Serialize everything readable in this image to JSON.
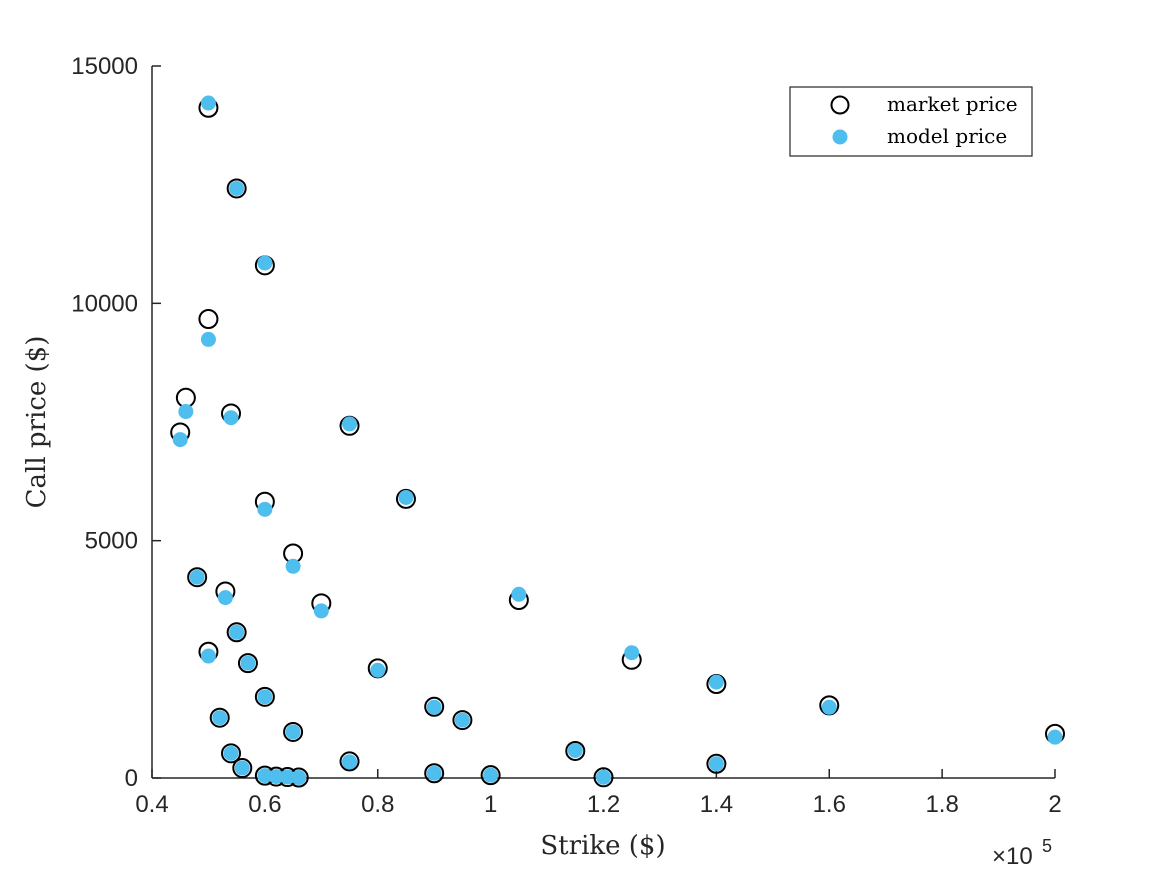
{
  "chart_data": {
    "type": "scatter",
    "title": "",
    "xlabel": "Strike ($)",
    "ylabel": "Call price ($)",
    "x_multiplier_label": "×10",
    "x_multiplier_exponent": "5",
    "xlim": [
      40000,
      200000
    ],
    "ylim": [
      0,
      15000
    ],
    "x_ticks": [
      40000,
      60000,
      80000,
      100000,
      120000,
      140000,
      160000,
      180000,
      200000
    ],
    "x_tick_labels": [
      "0.4",
      "0.6",
      "0.8",
      "1",
      "1.2",
      "1.4",
      "1.6",
      "1.8",
      "2"
    ],
    "y_ticks": [
      0,
      5000,
      10000,
      15000
    ],
    "y_tick_labels": [
      "0",
      "5000",
      "10000",
      "15000"
    ],
    "grid": false,
    "legend_position": "top-right",
    "series": [
      {
        "name": "market price",
        "marker": "open-circle",
        "color": "#000000",
        "points": [
          [
            50000,
            14120
          ],
          [
            55000,
            12420
          ],
          [
            60000,
            10800
          ],
          [
            50000,
            9670
          ],
          [
            46000,
            8010
          ],
          [
            45000,
            7280
          ],
          [
            54000,
            7680
          ],
          [
            75000,
            7420
          ],
          [
            60000,
            5820
          ],
          [
            85000,
            5880
          ],
          [
            65000,
            4730
          ],
          [
            48000,
            4230
          ],
          [
            53000,
            3930
          ],
          [
            70000,
            3680
          ],
          [
            105000,
            3750
          ],
          [
            55000,
            3070
          ],
          [
            50000,
            2660
          ],
          [
            57000,
            2420
          ],
          [
            80000,
            2310
          ],
          [
            125000,
            2490
          ],
          [
            140000,
            1980
          ],
          [
            60000,
            1710
          ],
          [
            90000,
            1500
          ],
          [
            160000,
            1530
          ],
          [
            52000,
            1270
          ],
          [
            95000,
            1220
          ],
          [
            65000,
            970
          ],
          [
            200000,
            930
          ],
          [
            54000,
            520
          ],
          [
            115000,
            570
          ],
          [
            75000,
            350
          ],
          [
            56000,
            210
          ],
          [
            140000,
            300
          ],
          [
            60000,
            50
          ],
          [
            62000,
            30
          ],
          [
            64000,
            20
          ],
          [
            66000,
            10
          ],
          [
            90000,
            100
          ],
          [
            100000,
            60
          ],
          [
            120000,
            15
          ]
        ]
      },
      {
        "name": "model price",
        "marker": "filled-circle",
        "color": "#4DBEEE",
        "points": [
          [
            50000,
            14220
          ],
          [
            55000,
            12420
          ],
          [
            60000,
            10850
          ],
          [
            50000,
            9240
          ],
          [
            46000,
            7720
          ],
          [
            45000,
            7130
          ],
          [
            54000,
            7590
          ],
          [
            75000,
            7460
          ],
          [
            60000,
            5660
          ],
          [
            85000,
            5910
          ],
          [
            65000,
            4460
          ],
          [
            48000,
            4230
          ],
          [
            53000,
            3800
          ],
          [
            70000,
            3520
          ],
          [
            105000,
            3870
          ],
          [
            55000,
            3070
          ],
          [
            50000,
            2570
          ],
          [
            57000,
            2420
          ],
          [
            80000,
            2270
          ],
          [
            125000,
            2640
          ],
          [
            140000,
            2020
          ],
          [
            60000,
            1710
          ],
          [
            90000,
            1490
          ],
          [
            160000,
            1490
          ],
          [
            52000,
            1270
          ],
          [
            95000,
            1220
          ],
          [
            65000,
            970
          ],
          [
            200000,
            860
          ],
          [
            54000,
            520
          ],
          [
            115000,
            580
          ],
          [
            75000,
            340
          ],
          [
            56000,
            210
          ],
          [
            140000,
            300
          ],
          [
            60000,
            50
          ],
          [
            62000,
            30
          ],
          [
            64000,
            20
          ],
          [
            66000,
            10
          ],
          [
            90000,
            100
          ],
          [
            100000,
            60
          ],
          [
            120000,
            15
          ]
        ]
      }
    ]
  }
}
